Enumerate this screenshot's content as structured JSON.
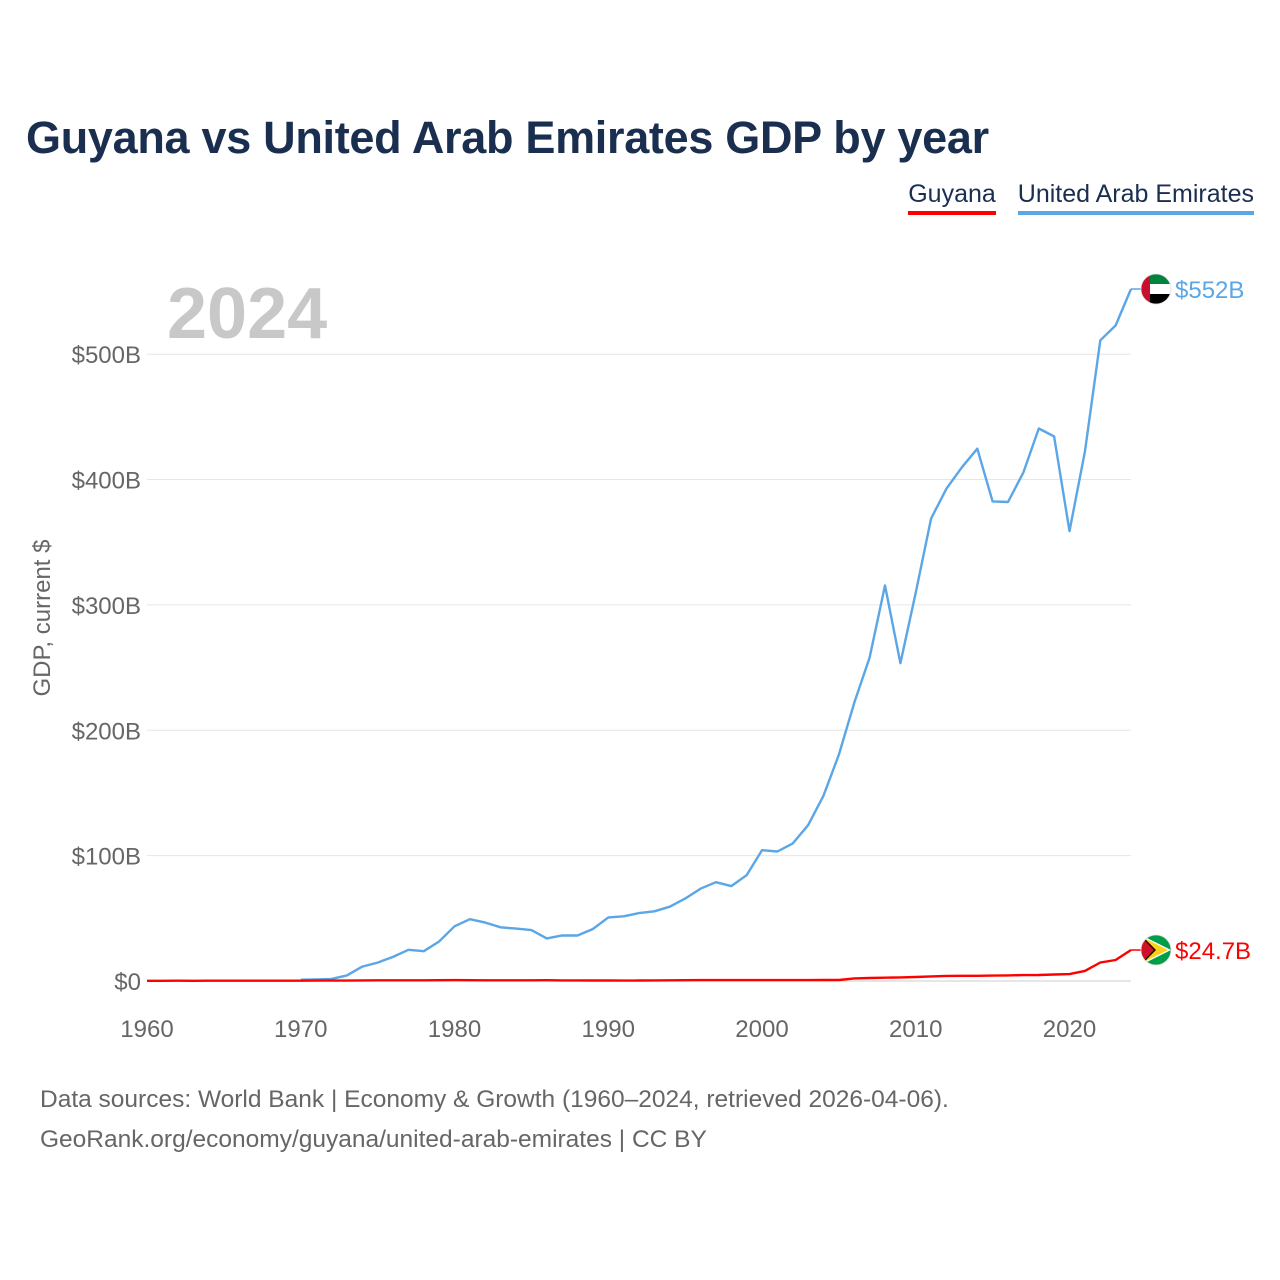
{
  "title": "Guyana vs United Arab Emirates GDP by year",
  "colors": {
    "guyana": "#ff0000",
    "uae": "#5aa6e6",
    "title": "#1a2e4f",
    "axis_text": "#666666",
    "year_watermark": "#c8c8c8"
  },
  "legend": {
    "guyana": "Guyana",
    "uae": "United Arab Emirates"
  },
  "footer": {
    "line1": "Data sources: World Bank | Economy & Growth (1960–2024, retrieved 2026-04-06).",
    "line2": "GeoRank.org/economy/guyana/united-arab-emirates | CC BY"
  },
  "chart_data": {
    "type": "line",
    "year_label": "2024",
    "ylabel": "GDP, current $",
    "xlim": [
      1960,
      2024
    ],
    "ylim": [
      0,
      552
    ],
    "x_ticks": [
      1960,
      1970,
      1980,
      1990,
      2000,
      2010,
      2020
    ],
    "y_ticks": [
      0,
      100,
      200,
      300,
      400,
      500
    ],
    "y_tick_labels": [
      "$0",
      "$100B",
      "$200B",
      "$300B",
      "$400B",
      "$500B"
    ],
    "series": [
      {
        "name": "United Arab Emirates",
        "color": "#5aa6e6",
        "end_label": "$552B",
        "flag_icon": "uae-flag-icon",
        "x": [
          1970,
          1971,
          1972,
          1973,
          1974,
          1975,
          1976,
          1977,
          1978,
          1979,
          1980,
          1981,
          1982,
          1983,
          1984,
          1985,
          1986,
          1987,
          1988,
          1989,
          1990,
          1991,
          1992,
          1993,
          1994,
          1995,
          1996,
          1997,
          1998,
          1999,
          2000,
          2001,
          2002,
          2003,
          2004,
          2005,
          2006,
          2007,
          2008,
          2009,
          2010,
          2011,
          2012,
          2013,
          2014,
          2015,
          2016,
          2017,
          2018,
          2019,
          2020,
          2021,
          2022,
          2023,
          2024
        ],
        "values": [
          1.0,
          1.3,
          1.7,
          4.5,
          11.5,
          14.7,
          19.2,
          24.9,
          23.8,
          31.5,
          43.6,
          49.3,
          46.6,
          42.8,
          41.8,
          40.6,
          34.0,
          36.4,
          36.3,
          41.5,
          50.7,
          51.6,
          54.2,
          55.6,
          59.3,
          65.7,
          73.6,
          78.8,
          75.7,
          84.4,
          104.3,
          103.3,
          109.8,
          124.3,
          147.8,
          180.6,
          222.1,
          258.0,
          315.5,
          253.5,
          310.0,
          368.9,
          392.8,
          409.8,
          424.6,
          382.6,
          382.1,
          405.7,
          440.7,
          434.4,
          358.9,
          422.2,
          511.1,
          522.9,
          552.0
        ]
      },
      {
        "name": "Guyana",
        "color": "#ff0000",
        "end_label": "$24.7B",
        "flag_icon": "guyana-flag-icon",
        "x": [
          1960,
          1961,
          1962,
          1963,
          1964,
          1965,
          1966,
          1967,
          1968,
          1969,
          1970,
          1971,
          1972,
          1973,
          1974,
          1975,
          1976,
          1977,
          1978,
          1979,
          1980,
          1981,
          1982,
          1983,
          1984,
          1985,
          1986,
          1987,
          1988,
          1989,
          1990,
          1991,
          1992,
          1993,
          1994,
          1995,
          1996,
          1997,
          1998,
          1999,
          2000,
          2001,
          2002,
          2003,
          2004,
          2005,
          2006,
          2007,
          2008,
          2009,
          2010,
          2011,
          2012,
          2013,
          2014,
          2015,
          2016,
          2017,
          2018,
          2019,
          2020,
          2021,
          2022,
          2023,
          2024
        ],
        "values": [
          0.17,
          0.19,
          0.2,
          0.19,
          0.21,
          0.23,
          0.24,
          0.26,
          0.24,
          0.27,
          0.27,
          0.28,
          0.3,
          0.33,
          0.44,
          0.55,
          0.53,
          0.53,
          0.59,
          0.63,
          0.71,
          0.63,
          0.56,
          0.57,
          0.55,
          0.56,
          0.61,
          0.47,
          0.49,
          0.4,
          0.4,
          0.35,
          0.37,
          0.48,
          0.56,
          0.63,
          0.71,
          0.75,
          0.72,
          0.69,
          0.71,
          0.7,
          0.73,
          0.74,
          0.79,
          0.83,
          2.1,
          2.43,
          2.67,
          2.89,
          3.2,
          3.64,
          4.06,
          4.17,
          4.13,
          4.28,
          4.48,
          4.74,
          4.79,
          5.17,
          5.47,
          8.04,
          14.72,
          16.79,
          24.7
        ]
      }
    ]
  }
}
